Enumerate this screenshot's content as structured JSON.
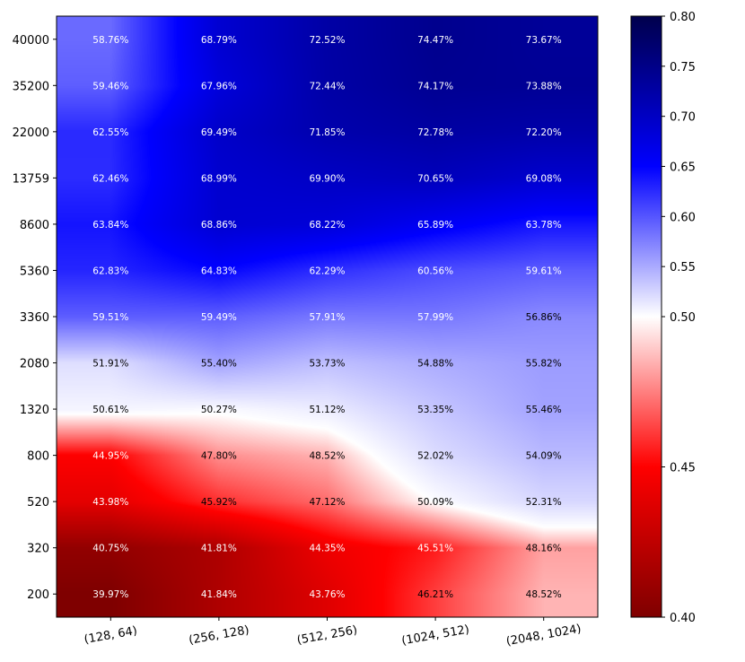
{
  "chart_data": {
    "type": "heatmap",
    "title": "",
    "xlabel": "",
    "ylabel": "",
    "x_categories": [
      "(128, 64)",
      "(256, 128)",
      "(512, 256)",
      "(1024, 512)",
      "(2048, 1024)"
    ],
    "y_categories": [
      "40000",
      "35200",
      "22000",
      "13759",
      "8600",
      "5360",
      "3360",
      "2080",
      "1320",
      "800",
      "520",
      "320",
      "200"
    ],
    "values": [
      [
        0.5876,
        0.6879,
        0.7252,
        0.7447,
        0.7367
      ],
      [
        0.5946,
        0.6796,
        0.7244,
        0.7417,
        0.7388
      ],
      [
        0.6255,
        0.6949,
        0.7185,
        0.7278,
        0.722
      ],
      [
        0.6246,
        0.6899,
        0.699,
        0.7065,
        0.6908
      ],
      [
        0.6384,
        0.6886,
        0.6822,
        0.6589,
        0.6378
      ],
      [
        0.6283,
        0.6483,
        0.6229,
        0.6056,
        0.5961
      ],
      [
        0.5951,
        0.5949,
        0.5791,
        0.5799,
        0.5686
      ],
      [
        0.5191,
        0.554,
        0.5373,
        0.5488,
        0.5582
      ],
      [
        0.5061,
        0.5027,
        0.5112,
        0.5335,
        0.5546
      ],
      [
        0.4495,
        0.478,
        0.4852,
        0.5202,
        0.5409
      ],
      [
        0.4398,
        0.4592,
        0.4712,
        0.5009,
        0.5231
      ],
      [
        0.4075,
        0.4181,
        0.4435,
        0.4551,
        0.4816
      ],
      [
        0.3997,
        0.4184,
        0.4376,
        0.4621,
        0.4852
      ]
    ],
    "labels": [
      [
        "58.76%",
        "68.79%",
        "72.52%",
        "74.47%",
        "73.67%"
      ],
      [
        "59.46%",
        "67.96%",
        "72.44%",
        "74.17%",
        "73.88%"
      ],
      [
        "62.55%",
        "69.49%",
        "71.85%",
        "72.78%",
        "72.20%"
      ],
      [
        "62.46%",
        "68.99%",
        "69.90%",
        "70.65%",
        "69.08%"
      ],
      [
        "63.84%",
        "68.86%",
        "68.22%",
        "65.89%",
        "63.78%"
      ],
      [
        "62.83%",
        "64.83%",
        "62.29%",
        "60.56%",
        "59.61%"
      ],
      [
        "59.51%",
        "59.49%",
        "57.91%",
        "57.99%",
        "56.86%"
      ],
      [
        "51.91%",
        "55.40%",
        "53.73%",
        "54.88%",
        "55.82%"
      ],
      [
        "50.61%",
        "50.27%",
        "51.12%",
        "53.35%",
        "55.46%"
      ],
      [
        "44.95%",
        "47.80%",
        "48.52%",
        "52.02%",
        "54.09%"
      ],
      [
        "43.98%",
        "45.92%",
        "47.12%",
        "50.09%",
        "52.31%"
      ],
      [
        "40.75%",
        "41.81%",
        "44.35%",
        "45.51%",
        "48.16%"
      ],
      [
        "39.97%",
        "41.84%",
        "43.76%",
        "46.21%",
        "48.52%"
      ]
    ],
    "colormap": "seismic_r",
    "colors": {
      "low": "#7f0000",
      "lowmid": "#ff0000",
      "mid": "#ffffff",
      "highmid": "#0000ff",
      "high": "#00004c"
    },
    "colorbar": {
      "vmin": 0.4,
      "vcenter": 0.5,
      "vmax": 0.8,
      "ticks": [
        0.4,
        0.45,
        0.5,
        0.55,
        0.6,
        0.65,
        0.7,
        0.75,
        0.8
      ],
      "tick_labels": [
        "0.40",
        "0.45",
        "0.50",
        "0.55",
        "0.60",
        "0.65",
        "0.70",
        "0.75",
        "0.80"
      ]
    }
  }
}
